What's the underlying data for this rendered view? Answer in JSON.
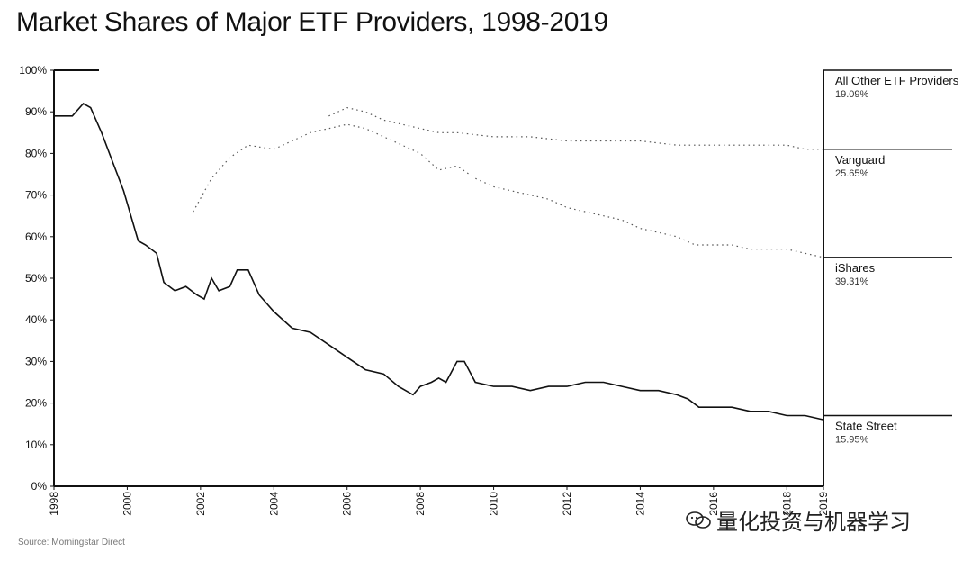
{
  "chart_data": {
    "type": "area",
    "title": "Market Shares of Major ETF Providers, 1998-2019",
    "source": "Source: Morningstar Direct",
    "xlabel": "",
    "ylabel": "",
    "xlim": [
      1998,
      2019
    ],
    "ylim": [
      0,
      100
    ],
    "y_ticks": [
      "0%",
      "10%",
      "20%",
      "30%",
      "40%",
      "50%",
      "60%",
      "70%",
      "80%",
      "90%",
      "100%"
    ],
    "x_ticks": [
      "1998",
      "2000",
      "2002",
      "2004",
      "2006",
      "2008",
      "2010",
      "2012",
      "2014",
      "2016",
      "2018",
      "2019"
    ],
    "series": [
      {
        "name": "State Street",
        "end_label": "15.95%",
        "style": "solid",
        "boundary_x": [
          1998.0,
          1998.5,
          1998.8,
          1999.0,
          1999.3,
          1999.6,
          1999.9,
          2000.3,
          2000.5,
          2000.8,
          2001.0,
          2001.3,
          2001.6,
          2001.9,
          2002.1,
          2002.3,
          2002.5,
          2002.8,
          2003.0,
          2003.3,
          2003.6,
          2004.0,
          2004.5,
          2005.0,
          2005.5,
          2006.0,
          2006.5,
          2007.0,
          2007.4,
          2007.8,
          2008.0,
          2008.3,
          2008.5,
          2008.7,
          2009.0,
          2009.2,
          2009.5,
          2010.0,
          2010.5,
          2011.0,
          2011.5,
          2012.0,
          2012.5,
          2013.0,
          2013.5,
          2014.0,
          2014.5,
          2015.0,
          2015.3,
          2015.6,
          2016.0,
          2016.5,
          2017.0,
          2017.5,
          2018.0,
          2018.5,
          2019.0
        ],
        "boundary_y": [
          89,
          89,
          92,
          91,
          85,
          78,
          71,
          59,
          58,
          56,
          49,
          47,
          48,
          46,
          45,
          50,
          47,
          48,
          52,
          52,
          46,
          42,
          38,
          37,
          34,
          31,
          28,
          27,
          24,
          22,
          24,
          25,
          26,
          25,
          30,
          30,
          25,
          24,
          24,
          23,
          24,
          24,
          25,
          25,
          24,
          23,
          23,
          22,
          21,
          19,
          19,
          19,
          18,
          18,
          17,
          17,
          16
        ]
      },
      {
        "name": "iShares",
        "end_label": "39.31%",
        "style": "dotted",
        "boundary_x": [
          2001.8,
          2002.3,
          2002.8,
          2003.3,
          2004.0,
          2004.5,
          2005.0,
          2005.5,
          2006.0,
          2006.5,
          2007.0,
          2007.5,
          2008.0,
          2008.5,
          2009.0,
          2009.5,
          2010.0,
          2010.5,
          2011.0,
          2011.5,
          2012.0,
          2012.5,
          2013.0,
          2013.5,
          2014.0,
          2014.5,
          2015.0,
          2015.5,
          2016.0,
          2016.5,
          2017.0,
          2017.5,
          2018.0,
          2018.5,
          2019.0
        ],
        "boundary_y": [
          66,
          74,
          79,
          82,
          81,
          83,
          85,
          86,
          87,
          86,
          84,
          82,
          80,
          76,
          77,
          74,
          72,
          71,
          70,
          69,
          67,
          66,
          65,
          64,
          62,
          61,
          60,
          58,
          58,
          58,
          57,
          57,
          57,
          56,
          55
        ]
      },
      {
        "name": "Vanguard",
        "end_label": "25.65%",
        "style": "dotted",
        "boundary_x": [
          2005.5,
          2006.0,
          2006.5,
          2007.0,
          2007.5,
          2008.0,
          2008.5,
          2009.0,
          2010.0,
          2011.0,
          2012.0,
          2013.0,
          2014.0,
          2015.0,
          2016.0,
          2016.8,
          2017.5,
          2018.0,
          2018.5,
          2019.0
        ],
        "boundary_y": [
          89,
          91,
          90,
          88,
          87,
          86,
          85,
          85,
          84,
          84,
          83,
          83,
          83,
          82,
          82,
          82,
          82,
          82,
          81,
          81
        ]
      },
      {
        "name": "All Other ETF Providers",
        "end_label": "19.09%",
        "style": "none"
      }
    ]
  }
}
